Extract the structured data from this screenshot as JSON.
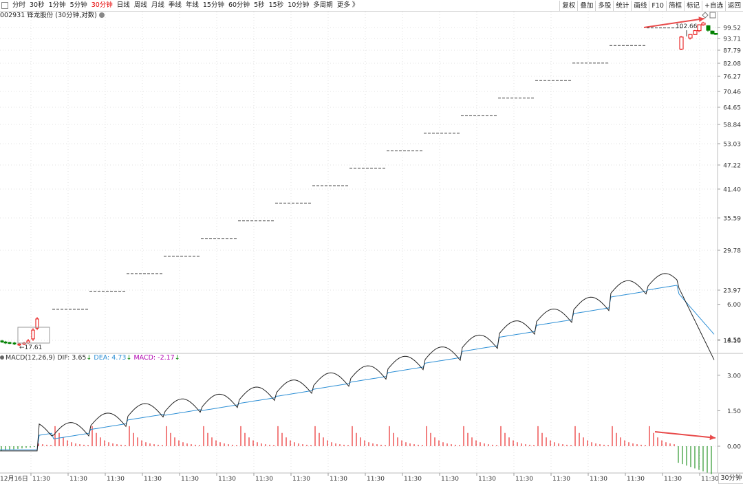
{
  "toolbar": {
    "tabs": [
      "分时",
      "30秒",
      "1分钟",
      "5分钟",
      "30分钟",
      "日线",
      "周线",
      "月线",
      "季线",
      "年线",
      "15分钟",
      "60分钟",
      "5秒",
      "15秒",
      "10分钟",
      "多周期",
      "更多 》"
    ],
    "active_tab": "30分钟",
    "right_tabs": [
      "复权",
      "叠加",
      "多股",
      "统计",
      "画线",
      "F10",
      "简框",
      "标记",
      "+自选",
      "返回"
    ]
  },
  "stock_title": "002931 锋龙股份 (30分钟,对数)",
  "price_axis": [
    "99.52",
    "93.71",
    "87.79",
    "82.08",
    "76.27",
    "70.46",
    "64.65",
    "58.84",
    "53.03",
    "47.22",
    "41.40",
    "35.59",
    "29.78",
    "23.97",
    "18.16"
  ],
  "annotations": {
    "high": "102.66",
    "low": "17.61"
  },
  "macd": {
    "label": "MACD(12,26,9)",
    "dif": "DIF: 3.65",
    "dea": "DEA: 4.73",
    "macd": "MACD: -2.17",
    "axis": [
      "6.00",
      "4.50",
      "3.00",
      "1.50",
      "0.00"
    ]
  },
  "time_axis": {
    "first": "12月16日",
    "tick": "11:30",
    "period_label": "30分钟"
  },
  "colors": {
    "up": "#e60000",
    "down": "#008000",
    "dea": "#2d8fd5",
    "macd_text": "#b000b0",
    "arrow": "#e84a4a"
  },
  "chart_data": {
    "type": "candlestick",
    "scale": "log",
    "steps": [
      21.5,
      23.7,
      26.1,
      28.7,
      31.6,
      34.8,
      38.3,
      42.1,
      46.3,
      50.9,
      56.0,
      61.6,
      67.8,
      74.6,
      82.0,
      90.2,
      99.3
    ],
    "macd_dif_peaks": [
      0.9,
      1.3,
      1.7,
      1.9,
      2.1,
      2.4,
      2.7,
      3.0,
      3.3,
      3.7,
      4.1,
      4.6,
      5.2,
      5.7,
      6.2,
      6.9,
      7.2
    ],
    "macd_dif_end": 3.65,
    "macd_dea_end": 4.73,
    "macd_hist_end": -2.17
  }
}
